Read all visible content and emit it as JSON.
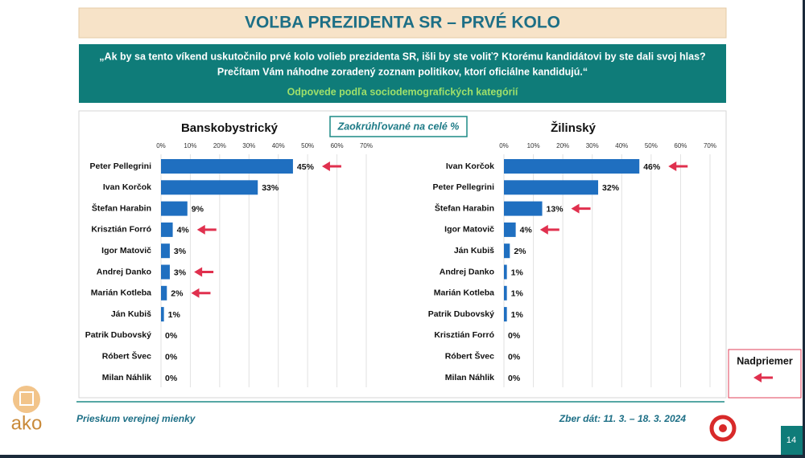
{
  "slide": {
    "title": "VOĽBA PREZIDENTA SR – PRVÉ KOLO",
    "question": [
      "„Ak by sa tento víkend uskutočnilo prvé kolo volieb prezidenta SR, išli by ste voliť? Ktorému kandidátovi by ste dali svoj hlas?",
      "Prečítam Vám náhodne zoradený zoznam politikov, ktorí oficiálne kandidujú.“"
    ],
    "subtitle": "Odpovede podľa sociodemografických kategórií",
    "note": "Zaokrúhľované na celé %",
    "legend_label": "Nadpriemer",
    "footer_left": "Prieskum verejnej mienky",
    "footer_right": "Zber dát: 11. 3. – 18. 3. 2024",
    "logo": "ako",
    "page": "14"
  },
  "chart_data": [
    {
      "type": "hbar",
      "title": "Banskobystrický",
      "color": "#1f6fc0",
      "grid": true,
      "categories": [
        "Peter Pellegrini",
        "Ivan Korčok",
        "Štefan Harabin",
        "Krisztián Forró",
        "Igor Matovič",
        "Andrej Danko",
        "Marián Kotleba",
        "Ján Kubiš",
        "Patrik Dubovský",
        "Róbert Švec",
        "Milan Náhlik"
      ],
      "values": [
        45,
        33,
        9,
        4,
        3,
        3,
        2,
        1,
        0,
        0,
        0
      ],
      "value_labels": [
        "45%",
        "33%",
        "9%",
        "4%",
        "3%",
        "3%",
        "2%",
        "1%",
        "0%",
        "0%",
        "0%"
      ],
      "above_average": [
        true,
        false,
        false,
        true,
        false,
        true,
        true,
        false,
        false,
        false,
        false
      ],
      "xlim": [
        0,
        70
      ],
      "xticks": [
        {
          "value": 0,
          "label": "0%"
        },
        {
          "value": 10,
          "label": "10%"
        },
        {
          "value": 20,
          "label": "20%"
        },
        {
          "value": 30,
          "label": "30%"
        },
        {
          "value": 40,
          "label": "40%"
        },
        {
          "value": 50,
          "label": "50%"
        },
        {
          "value": 60,
          "label": "60%"
        },
        {
          "value": 70,
          "label": "70%"
        }
      ]
    },
    {
      "type": "hbar",
      "title": "Žilinský",
      "color": "#1f6fc0",
      "grid": true,
      "categories": [
        "Ivan Korčok",
        "Peter Pellegrini",
        "Štefan Harabin",
        "Igor Matovič",
        "Ján Kubiš",
        "Andrej Danko",
        "Marián Kotleba",
        "Patrik Dubovský",
        "Krisztián Forró",
        "Róbert Švec",
        "Milan Náhlik"
      ],
      "values": [
        46,
        32,
        13,
        4,
        2,
        1,
        1,
        1,
        0,
        0,
        0
      ],
      "value_labels": [
        "46%",
        "32%",
        "13%",
        "4%",
        "2%",
        "1%",
        "1%",
        "1%",
        "0%",
        "0%",
        "0%"
      ],
      "above_average": [
        true,
        false,
        true,
        true,
        false,
        false,
        false,
        false,
        false,
        false,
        false
      ],
      "xlim": [
        0,
        70
      ],
      "xticks": [
        {
          "value": 0,
          "label": "0%"
        },
        {
          "value": 10,
          "label": "10%"
        },
        {
          "value": 20,
          "label": "20%"
        },
        {
          "value": 30,
          "label": "30%"
        },
        {
          "value": 40,
          "label": "40%"
        },
        {
          "value": 50,
          "label": "50%"
        },
        {
          "value": 60,
          "label": "60%"
        },
        {
          "value": 70,
          "label": "70%"
        }
      ]
    }
  ]
}
